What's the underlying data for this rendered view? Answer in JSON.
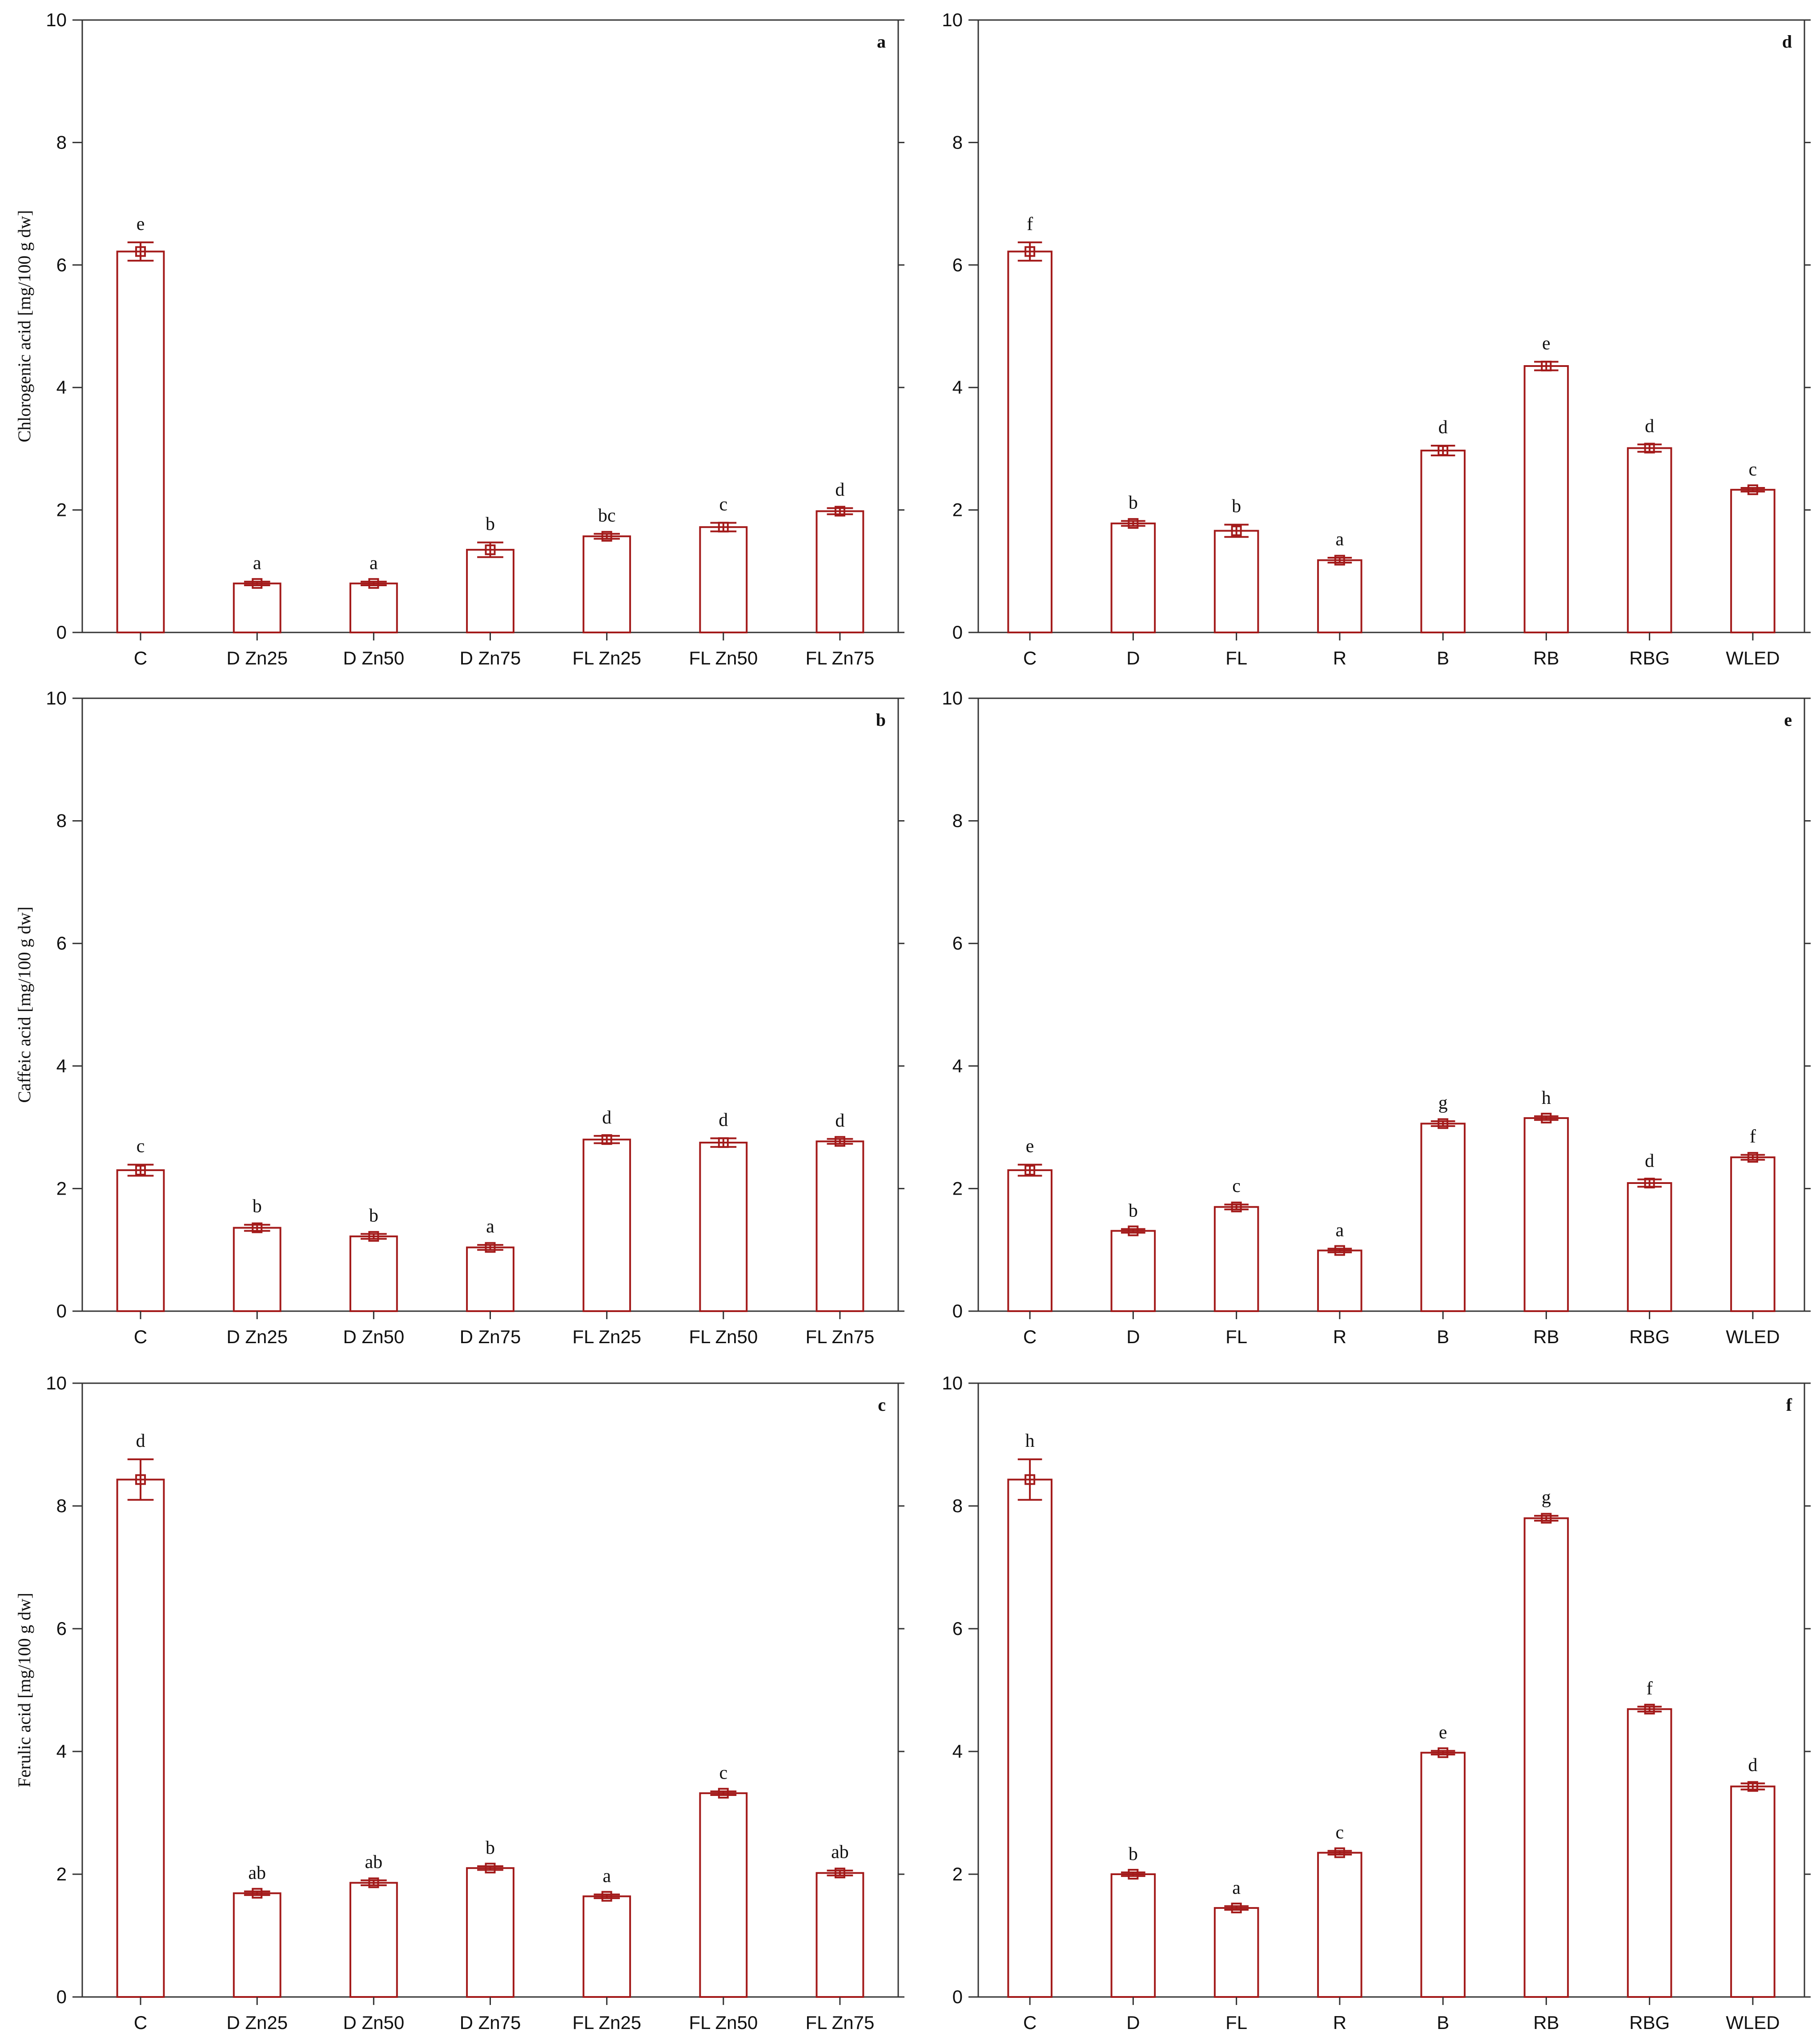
{
  "chart_data": [
    {
      "id": "a",
      "panel_letter": "a",
      "type": "bar",
      "ylabel": "Chlorogenic acid [mg/100 g dw]",
      "ylim": [
        0,
        10
      ],
      "yticks": [
        "0",
        "2",
        "4",
        "6",
        "8",
        "10"
      ],
      "categories": [
        "C",
        "D Zn25",
        "D Zn50",
        "D Zn75",
        "FL Zn25",
        "FL Zn50",
        "FL Zn75"
      ],
      "values": [
        6.22,
        0.8,
        0.8,
        1.35,
        1.57,
        1.72,
        1.98
      ],
      "errors": [
        0.15,
        0.03,
        0.03,
        0.12,
        0.04,
        0.07,
        0.05
      ],
      "letters": [
        "e",
        "a",
        "a",
        "b",
        "bc",
        "c",
        "d"
      ]
    },
    {
      "id": "b",
      "panel_letter": "b",
      "type": "bar",
      "ylabel": "Caffeic acid [mg/100 g dw]",
      "ylim": [
        0,
        10
      ],
      "yticks": [
        "0",
        "2",
        "4",
        "6",
        "8",
        "10"
      ],
      "categories": [
        "C",
        "D Zn25",
        "D Zn50",
        "D Zn75",
        "FL Zn25",
        "FL Zn50",
        "FL Zn75"
      ],
      "values": [
        2.3,
        1.36,
        1.22,
        1.04,
        2.8,
        2.75,
        2.77
      ],
      "errors": [
        0.09,
        0.05,
        0.04,
        0.04,
        0.06,
        0.07,
        0.04
      ],
      "letters": [
        "c",
        "b",
        "b",
        "a",
        "d",
        "d",
        "d"
      ]
    },
    {
      "id": "c",
      "panel_letter": "c",
      "type": "bar",
      "ylabel": "Ferulic acid [mg/100 g dw]",
      "ylim": [
        0,
        10
      ],
      "yticks": [
        "0",
        "2",
        "4",
        "6",
        "8",
        "10"
      ],
      "categories": [
        "C",
        "D Zn25",
        "D Zn50",
        "D Zn75",
        "FL Zn25",
        "FL Zn50",
        "FL Zn75"
      ],
      "values": [
        8.43,
        1.69,
        1.86,
        2.1,
        1.64,
        3.32,
        2.02
      ],
      "errors": [
        0.33,
        0.03,
        0.04,
        0.03,
        0.03,
        0.03,
        0.04
      ],
      "letters": [
        "d",
        "ab",
        "ab",
        "b",
        "a",
        "c",
        "ab"
      ]
    },
    {
      "id": "d",
      "panel_letter": "d",
      "type": "bar",
      "ylabel": "",
      "ylim": [
        0,
        10
      ],
      "yticks": [
        "0",
        "2",
        "4",
        "6",
        "8",
        "10"
      ],
      "categories": [
        "C",
        "D",
        "FL",
        "R",
        "B",
        "RB",
        "RBG",
        "WLED"
      ],
      "values": [
        6.22,
        1.78,
        1.66,
        1.18,
        2.97,
        4.35,
        3.01,
        2.33
      ],
      "errors": [
        0.15,
        0.04,
        0.1,
        0.04,
        0.08,
        0.07,
        0.06,
        0.03
      ],
      "letters": [
        "f",
        "b",
        "b",
        "a",
        "d",
        "e",
        "d",
        "c"
      ]
    },
    {
      "id": "e",
      "panel_letter": "e",
      "type": "bar",
      "ylabel": "",
      "ylim": [
        0,
        10
      ],
      "yticks": [
        "0",
        "2",
        "4",
        "6",
        "8",
        "10"
      ],
      "categories": [
        "C",
        "D",
        "FL",
        "R",
        "B",
        "RB",
        "RBG",
        "WLED"
      ],
      "values": [
        2.3,
        1.31,
        1.7,
        0.99,
        3.06,
        3.15,
        2.09,
        2.51
      ],
      "errors": [
        0.09,
        0.03,
        0.04,
        0.03,
        0.04,
        0.03,
        0.06,
        0.04
      ],
      "letters": [
        "e",
        "b",
        "c",
        "a",
        "g",
        "h",
        "d",
        "f"
      ]
    },
    {
      "id": "f",
      "panel_letter": "f",
      "type": "bar",
      "ylabel": "",
      "ylim": [
        0,
        10
      ],
      "yticks": [
        "0",
        "2",
        "4",
        "6",
        "8",
        "10"
      ],
      "categories": [
        "C",
        "D",
        "FL",
        "R",
        "B",
        "RB",
        "RBG",
        "WLED"
      ],
      "values": [
        8.43,
        2.0,
        1.45,
        2.35,
        3.98,
        7.8,
        4.69,
        3.43
      ],
      "errors": [
        0.33,
        0.03,
        0.03,
        0.03,
        0.03,
        0.04,
        0.04,
        0.05
      ],
      "letters": [
        "h",
        "b",
        "a",
        "c",
        "e",
        "g",
        "f",
        "d"
      ]
    }
  ],
  "colors": {
    "bar": "#a31a1a",
    "axis": "#333333",
    "text": "#111111"
  }
}
